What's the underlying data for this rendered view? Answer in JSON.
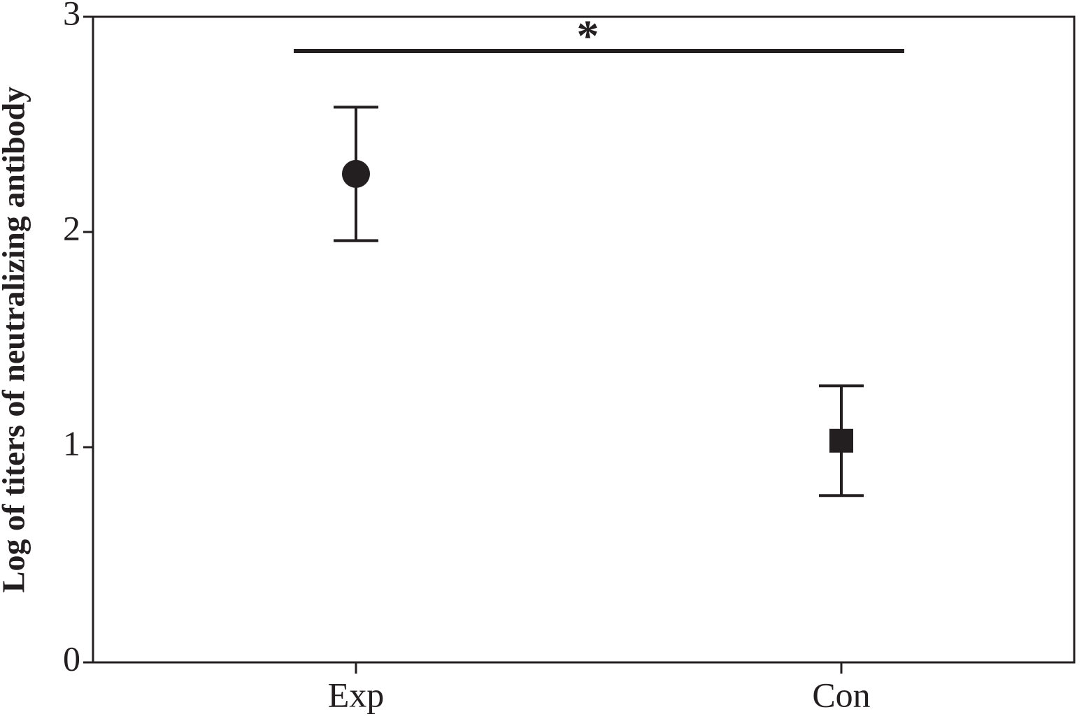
{
  "chart_data": {
    "type": "errorbar",
    "y_label": "Log of titers of neutralizing antibody",
    "categories": [
      "Exp",
      "Con"
    ],
    "values": [
      2.27,
      1.03
    ],
    "errors": [
      0.31,
      0.255
    ],
    "markers": [
      "circle",
      "square"
    ],
    "color": "#231f20",
    "ylim": [
      0,
      3
    ],
    "yticks": [
      0,
      1,
      2,
      3
    ],
    "annotation": "*"
  }
}
